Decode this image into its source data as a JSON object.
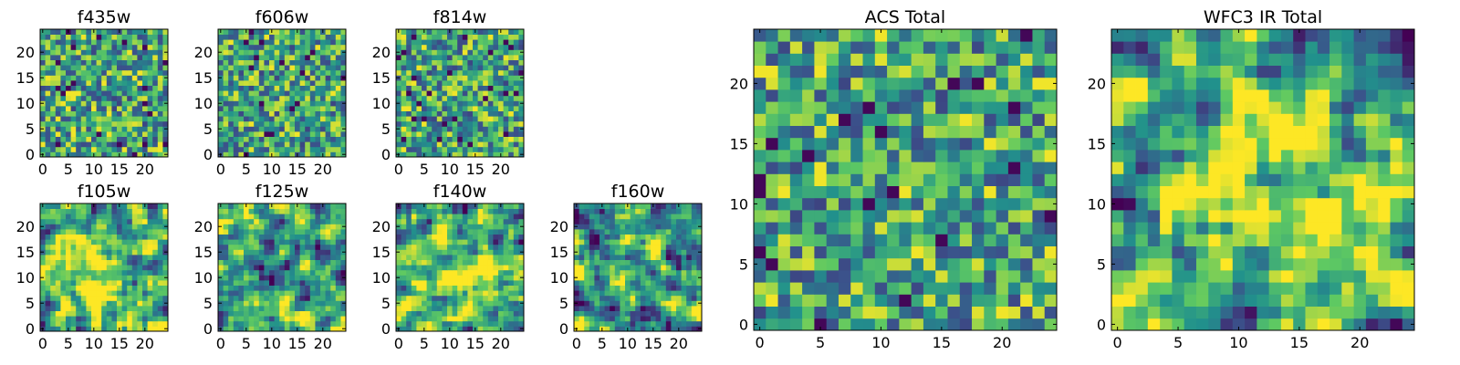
{
  "chart_data": [
    {
      "type": "heatmap",
      "title": "f435w",
      "xlim": [
        0,
        24
      ],
      "ylim": [
        0,
        24
      ],
      "xticks": [
        0,
        5,
        10,
        15,
        20
      ],
      "yticks": [
        0,
        5,
        10,
        15,
        20
      ],
      "grid_size": [
        25,
        25
      ],
      "colormap": "viridis",
      "style": "noisy uniform"
    },
    {
      "type": "heatmap",
      "title": "f606w",
      "xlim": [
        0,
        24
      ],
      "ylim": [
        0,
        24
      ],
      "xticks": [
        0,
        5,
        10,
        15,
        20
      ],
      "yticks": [
        0,
        5,
        10,
        15,
        20
      ],
      "grid_size": [
        25,
        25
      ],
      "colormap": "viridis",
      "style": "noisy uniform"
    },
    {
      "type": "heatmap",
      "title": "f814w",
      "xlim": [
        0,
        24
      ],
      "ylim": [
        0,
        24
      ],
      "xticks": [
        0,
        5,
        10,
        15,
        20
      ],
      "yticks": [
        0,
        5,
        10,
        15,
        20
      ],
      "grid_size": [
        25,
        25
      ],
      "colormap": "viridis",
      "style": "noisy uniform"
    },
    {
      "type": "heatmap",
      "title": "f105w",
      "xlim": [
        0,
        24
      ],
      "ylim": [
        0,
        24
      ],
      "xticks": [
        0,
        5,
        10,
        15,
        20
      ],
      "yticks": [
        0,
        5,
        10,
        15,
        20
      ],
      "grid_size": [
        25,
        25
      ],
      "colormap": "viridis",
      "style": "smooth bright center"
    },
    {
      "type": "heatmap",
      "title": "f125w",
      "xlim": [
        0,
        24
      ],
      "ylim": [
        0,
        24
      ],
      "xticks": [
        0,
        5,
        10,
        15,
        20
      ],
      "yticks": [
        0,
        5,
        10,
        15,
        20
      ],
      "grid_size": [
        25,
        25
      ],
      "colormap": "viridis",
      "style": "smooth noisy"
    },
    {
      "type": "heatmap",
      "title": "f140w",
      "xlim": [
        0,
        24
      ],
      "ylim": [
        0,
        24
      ],
      "xticks": [
        0,
        5,
        10,
        15,
        20
      ],
      "yticks": [
        0,
        5,
        10,
        15,
        20
      ],
      "grid_size": [
        25,
        25
      ],
      "colormap": "viridis",
      "style": "smooth bright center"
    },
    {
      "type": "heatmap",
      "title": "f160w",
      "xlim": [
        0,
        24
      ],
      "ylim": [
        0,
        24
      ],
      "xticks": [
        0,
        5,
        10,
        15,
        20
      ],
      "yticks": [
        0,
        5,
        10,
        15,
        20
      ],
      "grid_size": [
        25,
        25
      ],
      "colormap": "viridis",
      "style": "smooth noisy"
    },
    {
      "type": "heatmap",
      "title": "ACS Total",
      "xlim": [
        0,
        24
      ],
      "ylim": [
        0,
        24
      ],
      "xticks": [
        0,
        5,
        10,
        15,
        20
      ],
      "yticks": [
        0,
        5,
        10,
        15,
        20
      ],
      "grid_size": [
        25,
        25
      ],
      "colormap": "viridis",
      "style": "noisy uniform"
    },
    {
      "type": "heatmap",
      "title": "WFC3 IR Total",
      "xlim": [
        0,
        24
      ],
      "ylim": [
        0,
        24
      ],
      "xticks": [
        0,
        5,
        10,
        15,
        20
      ],
      "yticks": [
        0,
        5,
        10,
        15,
        20
      ],
      "grid_size": [
        25,
        25
      ],
      "colormap": "viridis",
      "style": "smooth bright center"
    }
  ],
  "colors": {
    "viridis_dark": "#440154",
    "viridis_blue": "#3b528b",
    "viridis_teal": "#21918c",
    "viridis_green": "#5ec962",
    "viridis_yellow": "#fde725",
    "axis": "#000000"
  }
}
